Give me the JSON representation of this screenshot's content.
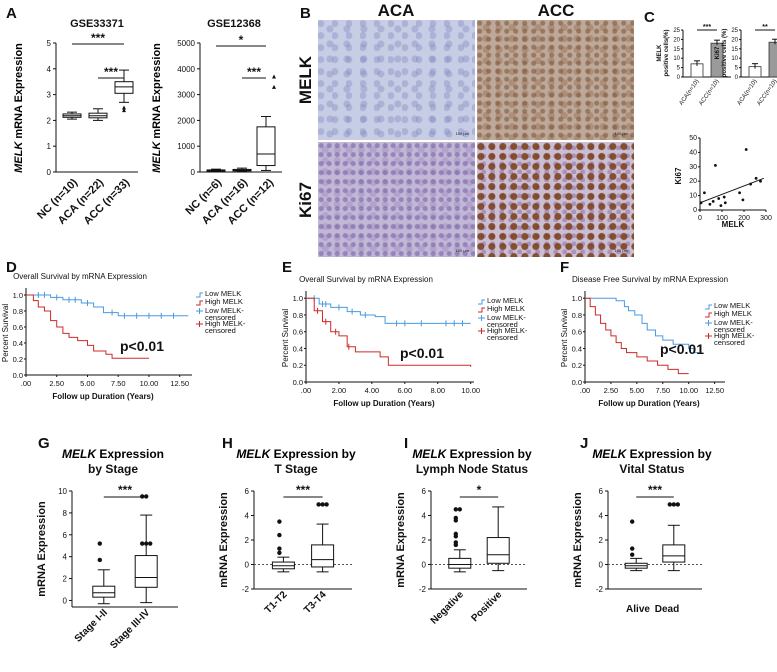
{
  "panel_labels": [
    "A",
    "B",
    "C",
    "D",
    "E",
    "F",
    "G",
    "H",
    "I",
    "J"
  ],
  "panel_a": {
    "left": {
      "title": "GSE33371",
      "ylabel_gene": "MELK",
      "ylabel_rest": " mRNA Expression",
      "yticks": [
        "0",
        "1",
        "2",
        "3",
        "4",
        "5"
      ],
      "categories": [
        "NC (n=10)",
        "ACA (n=22)",
        "ACC (n=33)"
      ],
      "sig": [
        "***",
        "***"
      ]
    },
    "right": {
      "title": "GSE12368",
      "ylabel_gene": "MELK",
      "ylabel_rest": " mRNA Expression",
      "yticks": [
        "0",
        "1000",
        "2000",
        "3000",
        "4000",
        "5000"
      ],
      "categories": [
        "NC (n=6)",
        "ACA (n=16)",
        "ACC (n=12)"
      ],
      "sig": [
        "*",
        "***"
      ]
    }
  },
  "panel_b": {
    "col_headers": [
      "ACA",
      "ACC"
    ],
    "row_headers": [
      "MELK",
      "Ki67"
    ],
    "scale": "100 μm"
  },
  "panel_c": {
    "melk_bar": {
      "ylabel": [
        "MELK",
        "positive cells(%)"
      ],
      "yticks": [
        "0",
        "5",
        "10",
        "15",
        "20",
        "25"
      ],
      "categories": [
        "ACA(n=10)",
        "ACC(n=10)"
      ],
      "values": [
        7,
        18
      ],
      "sig": "***"
    },
    "ki67_bar": {
      "ylabel": [
        "Ki67",
        "positive cells (%)"
      ],
      "yticks": [
        "0",
        "5",
        "10",
        "15",
        "20",
        "25"
      ],
      "categories": [
        "ACA(n=10)",
        "ACC(n=10)"
      ],
      "values": [
        5.5,
        18.5
      ],
      "sig": "**"
    },
    "scatter": {
      "xlabel": "MELK",
      "ylabel": "Ki67",
      "xticks": [
        "0",
        "100",
        "200",
        "300"
      ],
      "yticks": [
        "0",
        "10",
        "20",
        "30",
        "40",
        "50"
      ],
      "points": [
        [
          5,
          5
        ],
        [
          20,
          12
        ],
        [
          45,
          4
        ],
        [
          60,
          6
        ],
        [
          70,
          31
        ],
        [
          85,
          8
        ],
        [
          95,
          3
        ],
        [
          110,
          9
        ],
        [
          115,
          5
        ],
        [
          180,
          12
        ],
        [
          195,
          7
        ],
        [
          210,
          42
        ],
        [
          230,
          18
        ],
        [
          255,
          22
        ],
        [
          275,
          20
        ]
      ],
      "fit": [
        [
          0,
          5
        ],
        [
          290,
          22
        ]
      ]
    }
  },
  "chart_data": [
    {
      "type": "line",
      "title": "Overall Survival by mRNA Expression",
      "xlabel": "Follow up Duration (Years)",
      "ylabel": "Percent Survival",
      "xticks": [
        ".00",
        "2.50",
        "5.00",
        "7.50",
        "10.00",
        "12.50"
      ],
      "yticks": [
        "0.0",
        "0.2",
        "0.4",
        "0.6",
        "0.8",
        "1.0"
      ],
      "xlim": [
        0,
        13.5
      ],
      "ylim": [
        0,
        1.05
      ],
      "legend": [
        "Low MELK",
        "High MELK",
        "Low MELK-censored",
        "High MELK-censored"
      ],
      "annotation": "p<0.01",
      "series": [
        {
          "name": "Low MELK",
          "color": "#4a9ae0",
          "steps": [
            [
              0,
              1
            ],
            [
              2,
              0.97
            ],
            [
              3,
              0.94
            ],
            [
              4.5,
              0.9
            ],
            [
              5.5,
              0.85
            ],
            [
              6.3,
              0.78
            ],
            [
              7.5,
              0.74
            ],
            [
              13.2,
              0.74
            ]
          ],
          "censor": [
            1,
            1.5,
            2.5,
            3.5,
            4,
            5,
            7,
            8,
            9,
            10,
            11,
            12
          ]
        },
        {
          "name": "High MELK",
          "color": "#d02828",
          "steps": [
            [
              0,
              1
            ],
            [
              0.6,
              0.93
            ],
            [
              1,
              0.85
            ],
            [
              1.5,
              0.8
            ],
            [
              2,
              0.68
            ],
            [
              2.5,
              0.6
            ],
            [
              3,
              0.52
            ],
            [
              3.5,
              0.47
            ],
            [
              4.2,
              0.43
            ],
            [
              5,
              0.37
            ],
            [
              5.5,
              0.3
            ],
            [
              6.5,
              0.26
            ],
            [
              7,
              0.21
            ],
            [
              10,
              0.21
            ]
          ],
          "censor": []
        }
      ]
    },
    {
      "type": "line",
      "title": "Overall Survival by mRNA Expression",
      "xlabel": "Follow up Duration (Years)",
      "ylabel": "Percent Survival",
      "xticks": [
        ".00",
        "2.00",
        "4.00",
        "6.00",
        "8.00",
        "10.00"
      ],
      "yticks": [
        "0.0",
        "0.2",
        "0.4",
        "0.6",
        "0.8",
        "1.0"
      ],
      "xlim": [
        0,
        10.2
      ],
      "ylim": [
        0,
        1.05
      ],
      "legend": [
        "Low MELK",
        "High MELK",
        "Low MELK-censored",
        "High MELK-censored"
      ],
      "annotation": "p<0.01",
      "series": [
        {
          "name": "Low MELK",
          "color": "#4a9ae0",
          "steps": [
            [
              0,
              1
            ],
            [
              0.8,
              0.93
            ],
            [
              1.5,
              0.89
            ],
            [
              2.5,
              0.84
            ],
            [
              3.3,
              0.8
            ],
            [
              4.2,
              0.78
            ],
            [
              4.8,
              0.7
            ],
            [
              10,
              0.7
            ]
          ],
          "censor": [
            0.5,
            1,
            1.2,
            2,
            2.8,
            3.6,
            5.5,
            6,
            7,
            8.5,
            9,
            9.5
          ]
        },
        {
          "name": "High MELK",
          "color": "#d02828",
          "steps": [
            [
              0,
              1
            ],
            [
              0.5,
              0.85
            ],
            [
              1,
              0.72
            ],
            [
              1.5,
              0.6
            ],
            [
              2,
              0.55
            ],
            [
              2.5,
              0.42
            ],
            [
              3,
              0.36
            ],
            [
              4.5,
              0.3
            ],
            [
              5,
              0.2
            ],
            [
              10,
              0.18
            ]
          ],
          "censor": [
            0.7,
            1.2,
            1.8,
            2.6
          ]
        }
      ]
    },
    {
      "type": "line",
      "title": "Disease Free Survival by mRNA Expression",
      "xlabel": "Follow up Duration (Years)",
      "ylabel": "Percent Survival",
      "xticks": [
        ".00",
        "2.50",
        "5.00",
        "7.50",
        "10.00",
        "12.50"
      ],
      "yticks": [
        "0.0",
        "0.2",
        "0.4",
        "0.6",
        "0.8",
        "1.0"
      ],
      "xlim": [
        0,
        13.5
      ],
      "ylim": [
        0,
        1.05
      ],
      "legend": [
        "Low MELK",
        "High MELK",
        "Low MELK-censored",
        "High MELK-censored"
      ],
      "annotation": "p<0.01",
      "series": [
        {
          "name": "Low MELK",
          "color": "#4a9ae0",
          "steps": [
            [
              0,
              1
            ],
            [
              3,
              0.97
            ],
            [
              3.8,
              0.9
            ],
            [
              4.2,
              0.85
            ],
            [
              4.8,
              0.8
            ],
            [
              5.5,
              0.7
            ],
            [
              6,
              0.62
            ],
            [
              6.8,
              0.55
            ],
            [
              7.5,
              0.5
            ],
            [
              8.5,
              0.45
            ],
            [
              10,
              0.4
            ],
            [
              10.5,
              0.35
            ],
            [
              11,
              0.35
            ]
          ],
          "censor": []
        },
        {
          "name": "High MELK",
          "color": "#d02828",
          "steps": [
            [
              0,
              1
            ],
            [
              0.5,
              0.9
            ],
            [
              1,
              0.8
            ],
            [
              1.5,
              0.7
            ],
            [
              2,
              0.62
            ],
            [
              2.5,
              0.55
            ],
            [
              3,
              0.47
            ],
            [
              3.5,
              0.4
            ],
            [
              4,
              0.35
            ],
            [
              5,
              0.3
            ],
            [
              6,
              0.25
            ],
            [
              7,
              0.2
            ],
            [
              8,
              0.15
            ],
            [
              9,
              0.1
            ],
            [
              10,
              0.1
            ]
          ],
          "censor": []
        }
      ]
    }
  ],
  "box_panels": [
    {
      "title_gene": "MELK",
      "title_lines": [
        " Expression",
        "by Stage"
      ],
      "ylabel": "mRNA Expression",
      "yticks": [
        "0",
        "2",
        "4",
        "6",
        "8",
        "10"
      ],
      "ymax": 10,
      "ymin": -0.6,
      "categories": [
        "Stage I-II",
        "Stage III-IV"
      ],
      "sig": "***",
      "dotted": false,
      "boxes": [
        {
          "lo": -0.3,
          "q1": 0.3,
          "med": 0.7,
          "q3": 1.3,
          "hi": 2.8,
          "out": [
            3.7,
            5.2
          ]
        },
        {
          "lo": -0.2,
          "q1": 1.2,
          "med": 2.1,
          "q3": 4.1,
          "hi": 7.8,
          "out": [
            9.5,
            9.5,
            5.2,
            5.2,
            5.2
          ]
        }
      ]
    },
    {
      "title_gene": "MELK",
      "title_lines": [
        " Expression by",
        "T Stage"
      ],
      "ylabel": "mRNA Expression",
      "yticks": [
        "-2",
        "0",
        "2",
        "4",
        "6"
      ],
      "ymax": 6,
      "ymin": -2,
      "categories": [
        "T1-T2",
        "T3-T4"
      ],
      "sig": "***",
      "dotted": true,
      "boxes": [
        {
          "lo": -0.6,
          "q1": -0.35,
          "med": -0.1,
          "q3": 0.2,
          "hi": 0.6,
          "out": [
            0.95,
            1.3,
            2.4,
            3.5
          ]
        },
        {
          "lo": -0.6,
          "q1": -0.2,
          "med": 0.4,
          "q3": 1.6,
          "hi": 3.3,
          "out": [
            4.9,
            4.9,
            4.9
          ]
        }
      ]
    },
    {
      "title_gene": "MELK",
      "title_lines": [
        " Expression by",
        "Lymph Node Status"
      ],
      "ylabel": "mRNA Expression",
      "yticks": [
        "-2",
        "0",
        "2",
        "4",
        "6"
      ],
      "ymax": 6,
      "ymin": -2,
      "categories": [
        "Negative",
        "Positive"
      ],
      "sig": "*",
      "dotted": true,
      "boxes": [
        {
          "lo": -0.6,
          "q1": -0.3,
          "med": 0.0,
          "q3": 0.5,
          "hi": 1.2,
          "out": [
            1.6,
            1.8,
            2.3,
            2.5,
            3.6,
            3.8,
            4.5,
            4.5
          ]
        },
        {
          "lo": -0.5,
          "q1": 0.1,
          "med": 0.8,
          "q3": 2.2,
          "hi": 4.7,
          "out": []
        }
      ]
    },
    {
      "title_gene": "MELK",
      "title_lines": [
        " Expression by",
        "Vital Status"
      ],
      "ylabel": "mRNA Expression",
      "yticks": [
        "-2",
        "0",
        "2",
        "4",
        "6"
      ],
      "ymax": 6,
      "ymin": -2,
      "categories": [
        "Alive",
        "Dead"
      ],
      "sig": "***",
      "dotted": true,
      "boxes": [
        {
          "lo": -0.5,
          "q1": -0.3,
          "med": -0.1,
          "q3": 0.1,
          "hi": 0.5,
          "out": [
            0.8,
            1.3,
            3.5
          ]
        },
        {
          "lo": -0.5,
          "q1": 0.2,
          "med": 0.7,
          "q3": 1.6,
          "hi": 3.2,
          "out": [
            4.9,
            4.9,
            4.9
          ]
        }
      ]
    }
  ]
}
